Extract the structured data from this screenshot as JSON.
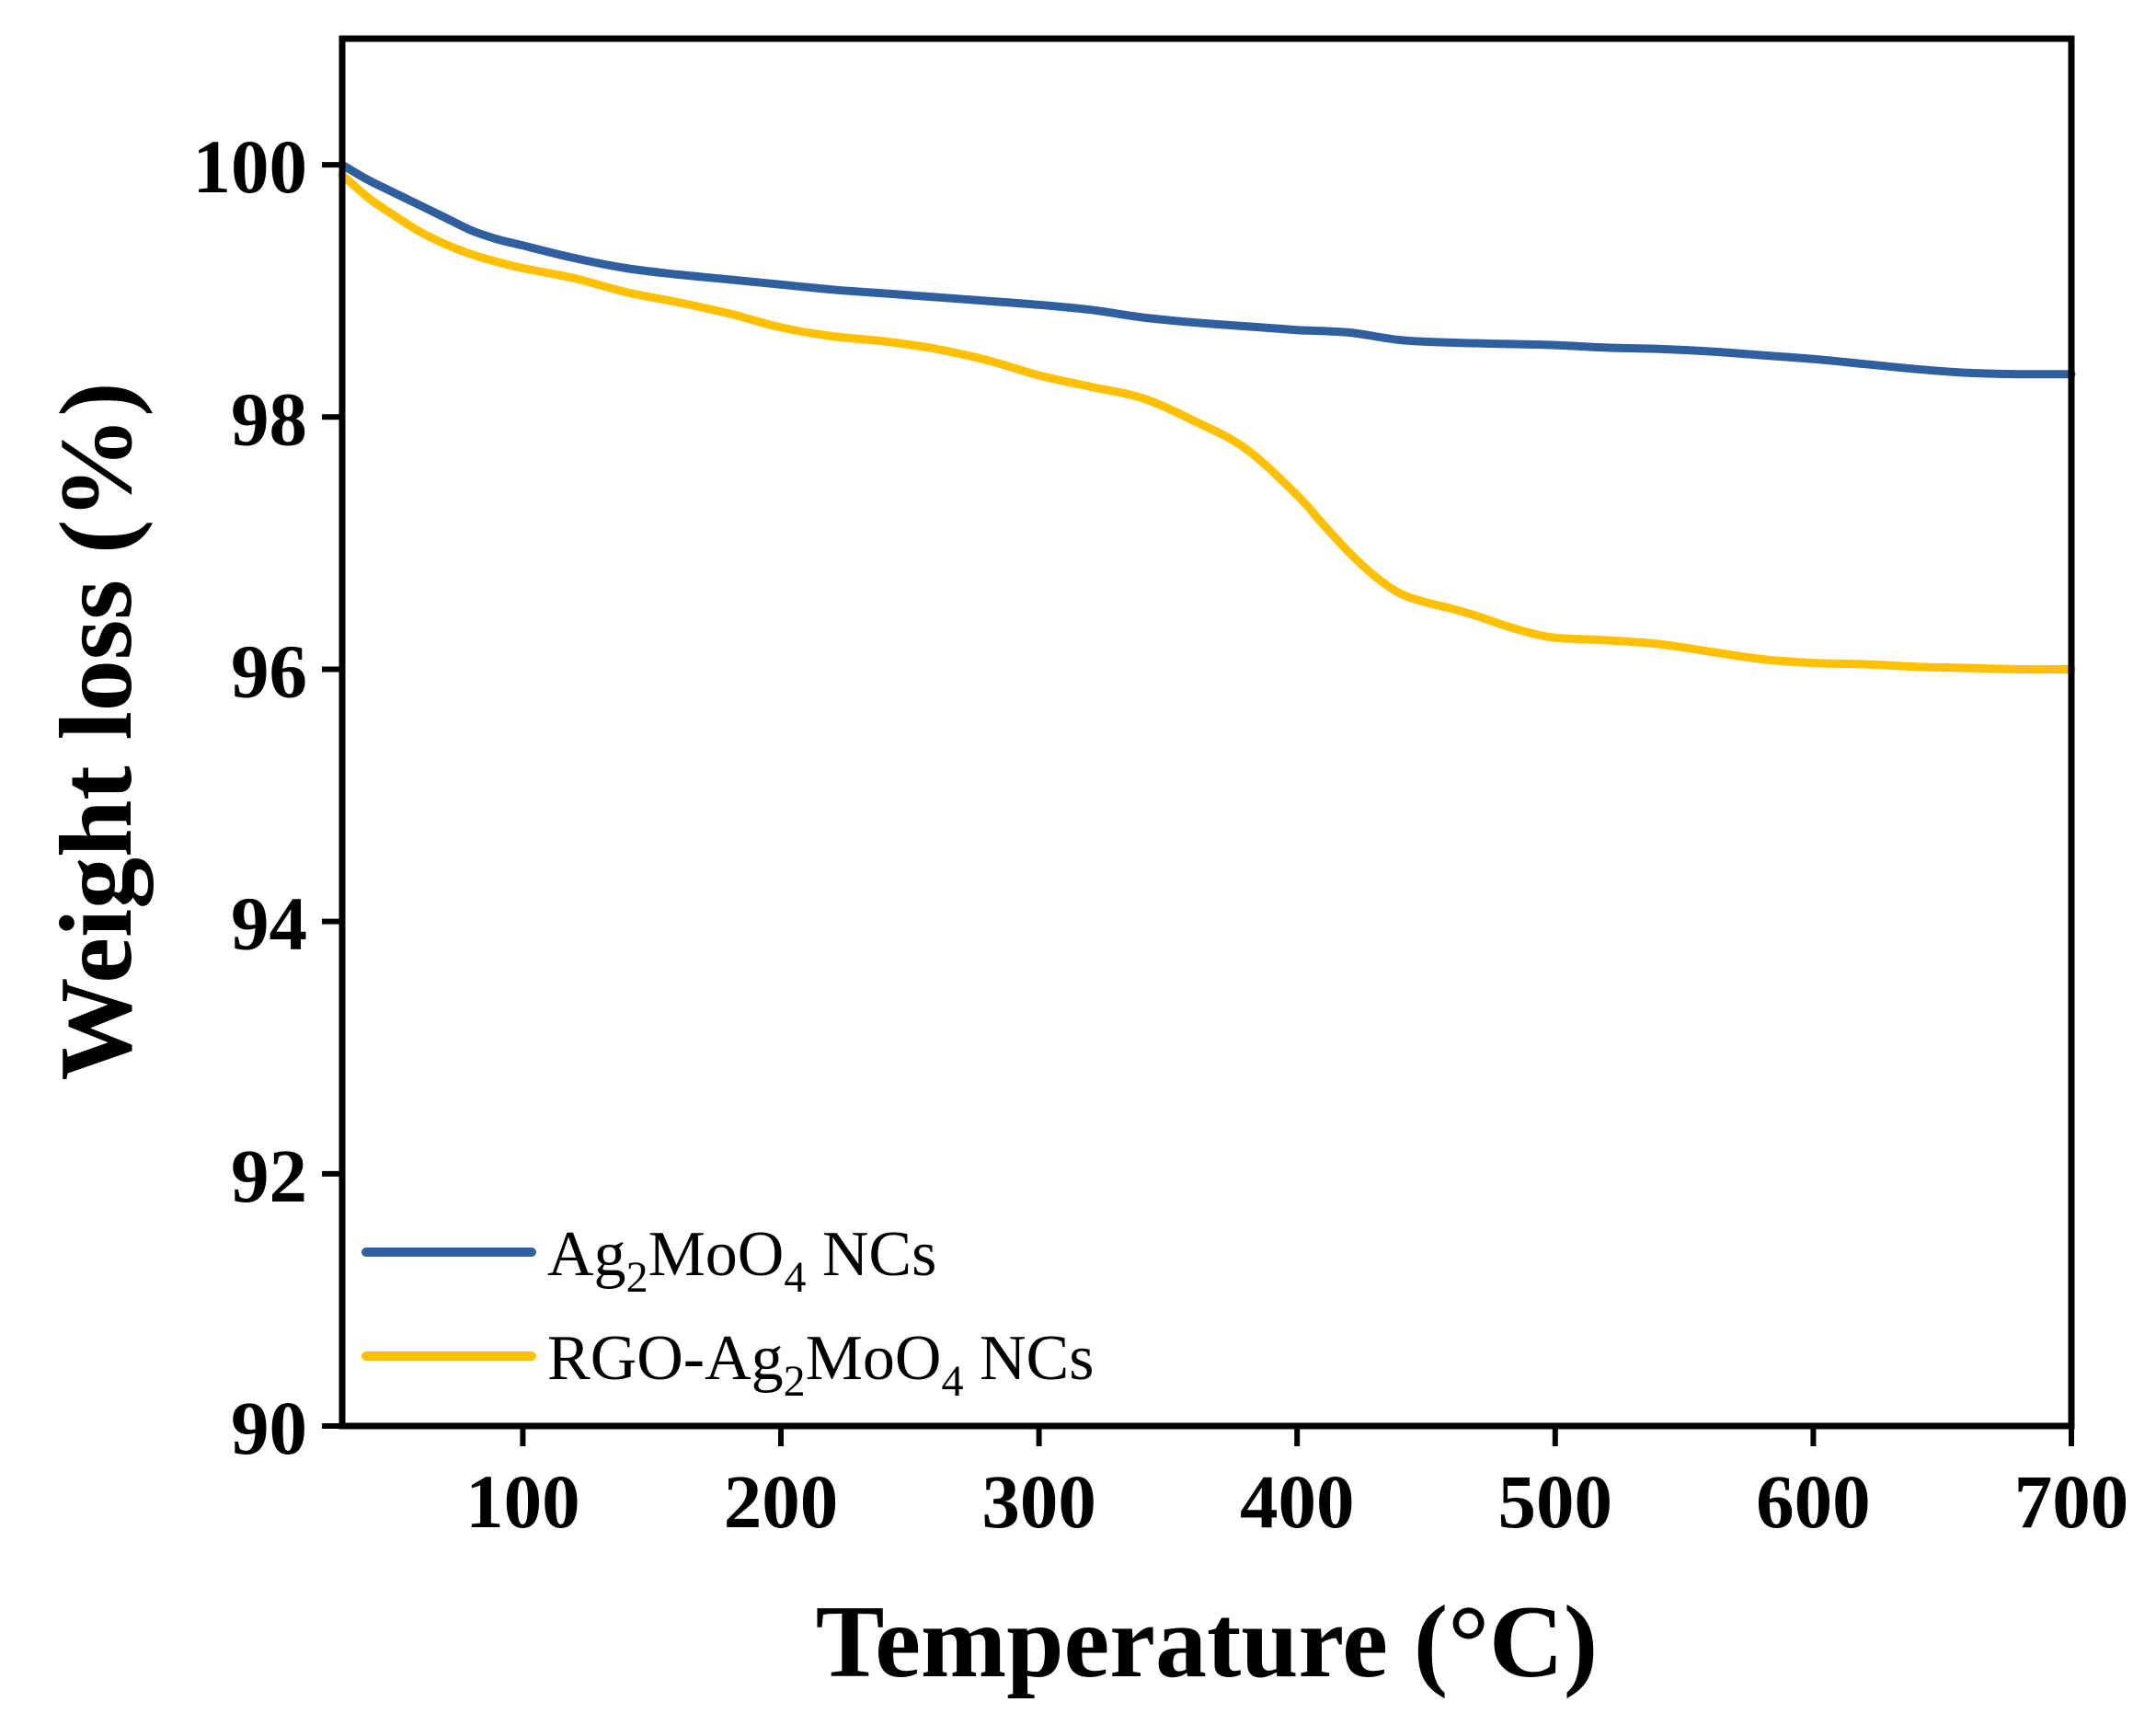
{
  "chart_data": {
    "type": "line",
    "title": "",
    "xlabel": "Temperature (°C)",
    "ylabel": "Weight loss (%)",
    "xlim": [
      30,
      700
    ],
    "ylim": [
      90,
      101
    ],
    "x_ticks": [
      100,
      200,
      300,
      400,
      500,
      600,
      700
    ],
    "y_ticks": [
      90,
      92,
      94,
      96,
      98,
      100
    ],
    "grid": false,
    "legend_position": "bottom-left",
    "series": [
      {
        "name": "Ag2MoO4 NCs",
        "legend_parts": [
          "Ag",
          "2",
          "MoO",
          "4",
          " NCs"
        ],
        "color": "#2F5F9E",
        "x": [
          30,
          40,
          50,
          60,
          70,
          80,
          90,
          100,
          120,
          140,
          160,
          180,
          200,
          220,
          240,
          260,
          280,
          300,
          320,
          340,
          360,
          380,
          400,
          420,
          440,
          460,
          480,
          500,
          520,
          540,
          560,
          580,
          600,
          620,
          640,
          660,
          680,
          700
        ],
        "y": [
          100.0,
          99.88,
          99.78,
          99.68,
          99.58,
          99.48,
          99.41,
          99.36,
          99.26,
          99.18,
          99.13,
          99.09,
          99.05,
          99.01,
          98.98,
          98.95,
          98.92,
          98.89,
          98.85,
          98.79,
          98.75,
          98.72,
          98.69,
          98.67,
          98.61,
          98.59,
          98.58,
          98.57,
          98.55,
          98.54,
          98.52,
          98.49,
          98.46,
          98.42,
          98.38,
          98.35,
          98.34,
          98.34
        ]
      },
      {
        "name": "RGO-Ag2MoO4 NCs",
        "legend_parts": [
          "RGO-Ag",
          "2",
          "MoO",
          "4",
          " NCs"
        ],
        "color": "#FFC000",
        "x": [
          30,
          40,
          50,
          60,
          70,
          80,
          90,
          100,
          120,
          140,
          160,
          180,
          200,
          220,
          240,
          260,
          280,
          300,
          320,
          340,
          360,
          380,
          400,
          410,
          420,
          430,
          440,
          450,
          460,
          470,
          480,
          490,
          500,
          520,
          540,
          560,
          580,
          600,
          620,
          640,
          660,
          680,
          700
        ],
        "y": [
          99.92,
          99.74,
          99.6,
          99.47,
          99.37,
          99.29,
          99.23,
          99.18,
          99.1,
          98.99,
          98.91,
          98.82,
          98.71,
          98.64,
          98.6,
          98.54,
          98.45,
          98.33,
          98.24,
          98.15,
          97.97,
          97.75,
          97.38,
          97.15,
          96.93,
          96.74,
          96.6,
          96.53,
          96.48,
          96.42,
          96.35,
          96.29,
          96.25,
          96.23,
          96.2,
          96.14,
          96.08,
          96.05,
          96.04,
          96.02,
          96.01,
          96.0,
          96.0
        ]
      }
    ]
  }
}
